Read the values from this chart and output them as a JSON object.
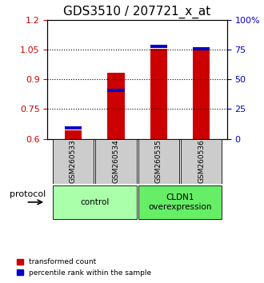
{
  "title": "GDS3510 / 207721_x_at",
  "samples": [
    "GSM260533",
    "GSM260534",
    "GSM260535",
    "GSM260536"
  ],
  "red_values": [
    0.645,
    0.935,
    1.055,
    1.05
  ],
  "blue_values": [
    0.655,
    0.845,
    1.065,
    1.055
  ],
  "ylim": [
    0.6,
    1.2
  ],
  "yticks_left": [
    0.6,
    0.75,
    0.9,
    1.05,
    1.2
  ],
  "yticks_right": [
    0,
    25,
    50,
    75,
    100
  ],
  "right_ylim": [
    0,
    100
  ],
  "groups": [
    {
      "label": "control",
      "samples": [
        0,
        1
      ],
      "color": "#aaffaa"
    },
    {
      "label": "CLDN1\noverexpression",
      "samples": [
        2,
        3
      ],
      "color": "#66ee66"
    }
  ],
  "bar_color": "#cc0000",
  "blue_color": "#0000cc",
  "bar_width": 0.4,
  "title_fontsize": 11,
  "tick_color_left": "#cc0000",
  "tick_color_right": "#0000cc",
  "background_labels": "#cccccc",
  "legend_red": "transformed count",
  "legend_blue": "percentile rank within the sample"
}
